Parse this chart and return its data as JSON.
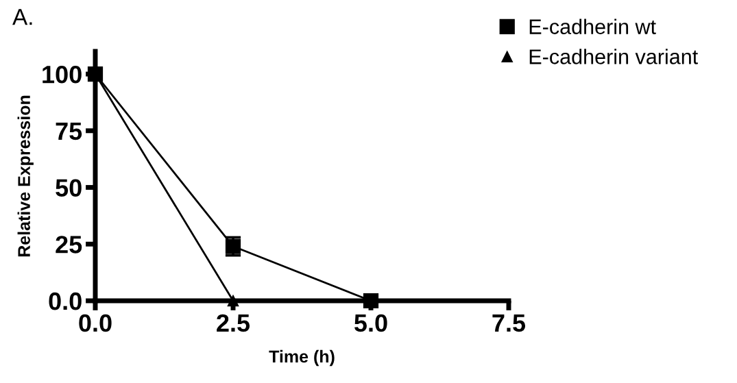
{
  "chart_data": {
    "type": "line",
    "xlabel": "Time (h)",
    "ylabel": "Relative Expression",
    "annotations": [
      "A."
    ],
    "x": [
      0,
      2.5,
      5.0
    ],
    "series": [
      {
        "name": "E-cadherin wt",
        "color": "#000000",
        "marker": "square",
        "values": [
          100,
          24,
          0
        ],
        "errors": [
          null,
          4,
          null
        ]
      },
      {
        "name": "E-cadherin variant",
        "color": "#000000",
        "marker": "triangle",
        "values": [
          100,
          0,
          0
        ]
      }
    ],
    "xlim": [
      0,
      7.5
    ],
    "xticks": [
      {
        "value": 0,
        "label": "0.0"
      },
      2.5,
      {
        "value": 5,
        "label": "5.0"
      },
      7.5
    ],
    "ylim": [
      0,
      110
    ],
    "yticks": [
      {
        "value": 0,
        "label": "0.0"
      },
      25,
      50,
      75,
      100
    ],
    "grid": false,
    "legend": "top right",
    "line_style": "solid"
  }
}
